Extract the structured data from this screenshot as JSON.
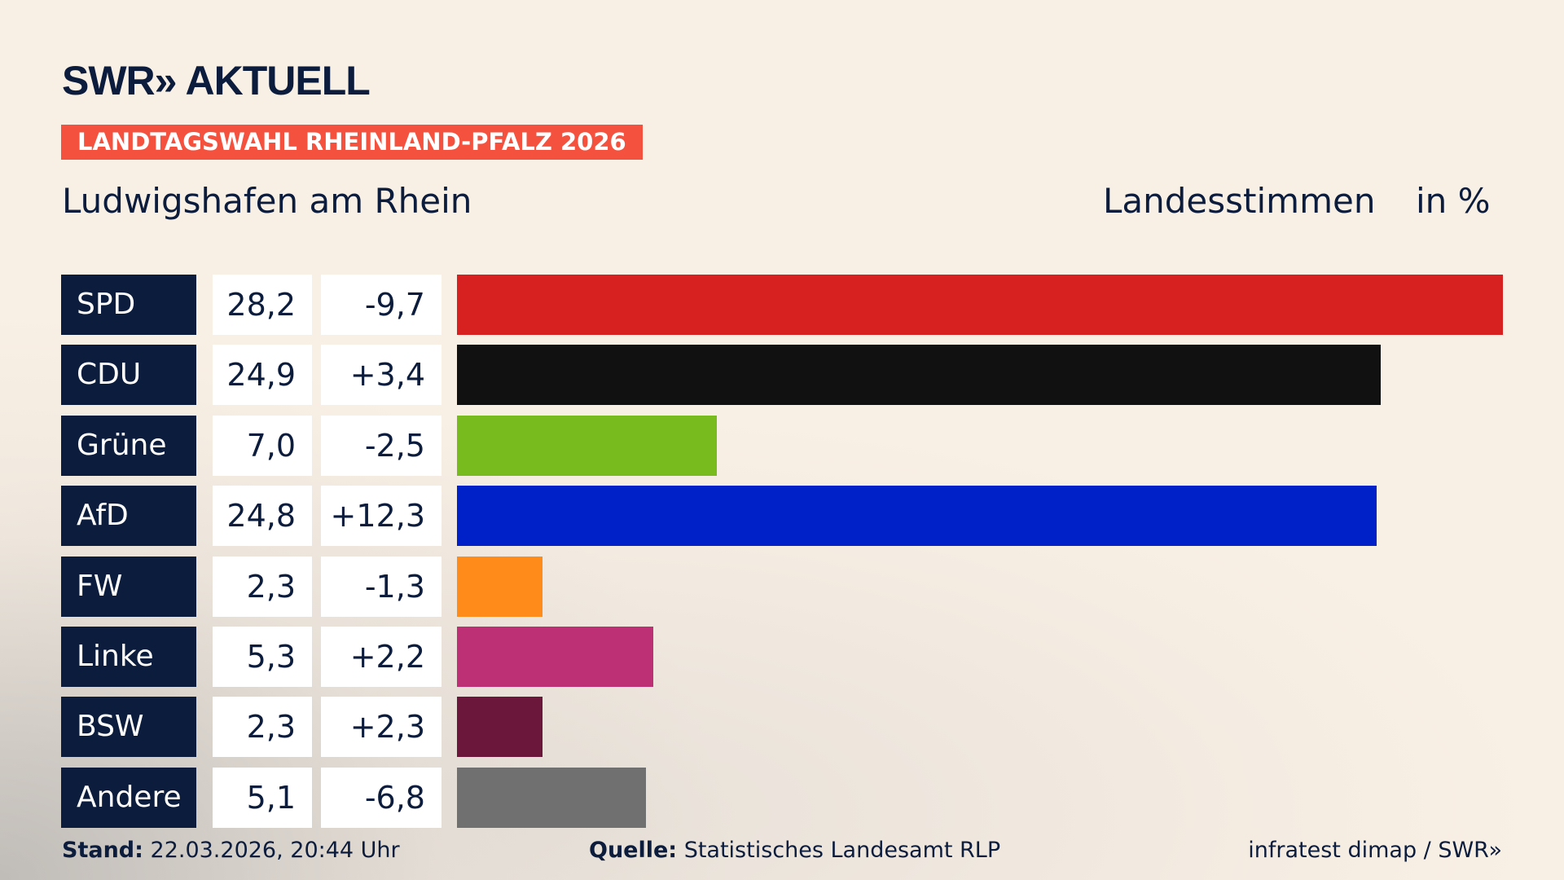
{
  "header": {
    "logo": "SWR» AKTUELL",
    "banner": "LANDTAGSWAHL RHEINLAND-PFALZ 2026",
    "region": "Ludwigshafen am Rhein",
    "vote_type": "Landesstimmen",
    "unit": "in %"
  },
  "colors": {
    "navy": "#0c1c3c",
    "banner": "#f4513f",
    "background": "#f9f0e5"
  },
  "chart_data": {
    "type": "bar",
    "orientation": "horizontal",
    "categories": [
      "SPD",
      "CDU",
      "Grüne",
      "AfD",
      "FW",
      "Linke",
      "BSW",
      "Andere"
    ],
    "values": [
      28.2,
      24.9,
      7.0,
      24.8,
      2.3,
      5.3,
      2.3,
      5.1
    ],
    "labels": [
      "28,2",
      "24,9",
      "7,0",
      "24,8",
      "2,3",
      "5,3",
      "2,3",
      "5,1"
    ],
    "changes": [
      "-9,7",
      "+3,4",
      "-2,5",
      "+12,3",
      "-1,3",
      "+2,2",
      "+2,3",
      "-6,8"
    ],
    "bar_colors": [
      "#d72020",
      "#111111",
      "#78bb1e",
      "#0021c8",
      "#ff8c1a",
      "#bd3075",
      "#6a173b",
      "#707070"
    ],
    "title": "Landesstimmen",
    "unit": "in %",
    "grid": false
  },
  "footer": {
    "stand_label": "Stand:",
    "stand_value": "22.03.2026, 20:44 Uhr",
    "source_label": "Quelle:",
    "source_value": "Statistisches Landesamt RLP",
    "credit": "infratest dimap / SWR»"
  }
}
